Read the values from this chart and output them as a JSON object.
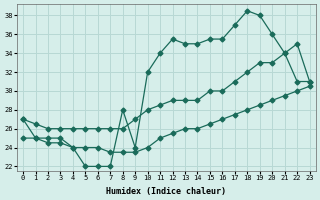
{
  "xlabel": "Humidex (Indice chaleur)",
  "ylabel": "",
  "background_color": "#d6eeea",
  "grid_color": "#b8d8d4",
  "line_color": "#1a6b5a",
  "xlim": [
    -0.5,
    23.5
  ],
  "ylim": [
    21.5,
    39.2
  ],
  "xticks": [
    0,
    1,
    2,
    3,
    4,
    5,
    6,
    7,
    8,
    9,
    10,
    11,
    12,
    13,
    14,
    15,
    16,
    17,
    18,
    19,
    20,
    21,
    22,
    23
  ],
  "yticks": [
    22,
    24,
    26,
    28,
    30,
    32,
    34,
    36,
    38
  ],
  "series1_x": [
    0,
    1,
    2,
    3,
    4,
    5,
    6,
    7,
    8,
    9,
    10,
    11,
    12,
    13,
    14,
    15,
    16,
    17,
    18,
    19,
    20,
    21,
    22,
    23
  ],
  "series1_y": [
    27,
    25,
    25,
    25,
    24,
    22,
    22,
    22,
    28,
    24,
    32,
    34,
    35.5,
    35,
    35,
    35.5,
    35.5,
    37,
    38.5,
    38,
    36,
    34,
    31,
    31
  ],
  "series2_x": [
    0,
    1,
    2,
    3,
    4,
    5,
    6,
    7,
    8,
    9,
    10,
    11,
    12,
    13,
    14,
    15,
    16,
    17,
    18,
    19,
    20,
    21,
    22,
    23
  ],
  "series2_y": [
    27,
    26.5,
    26,
    26,
    26,
    26,
    26,
    26,
    26,
    27,
    28,
    28.5,
    29,
    29,
    29,
    30,
    30,
    31,
    32,
    33,
    33,
    34,
    35,
    31
  ],
  "series3_x": [
    0,
    1,
    2,
    3,
    4,
    5,
    6,
    7,
    8,
    9,
    10,
    11,
    12,
    13,
    14,
    15,
    16,
    17,
    18,
    19,
    20,
    21,
    22,
    23
  ],
  "series3_y": [
    25,
    25,
    24.5,
    24.5,
    24,
    24,
    24,
    23.5,
    23.5,
    23.5,
    24,
    25,
    25.5,
    26,
    26,
    26.5,
    27,
    27.5,
    28,
    28.5,
    29,
    29.5,
    30,
    30.5
  ]
}
